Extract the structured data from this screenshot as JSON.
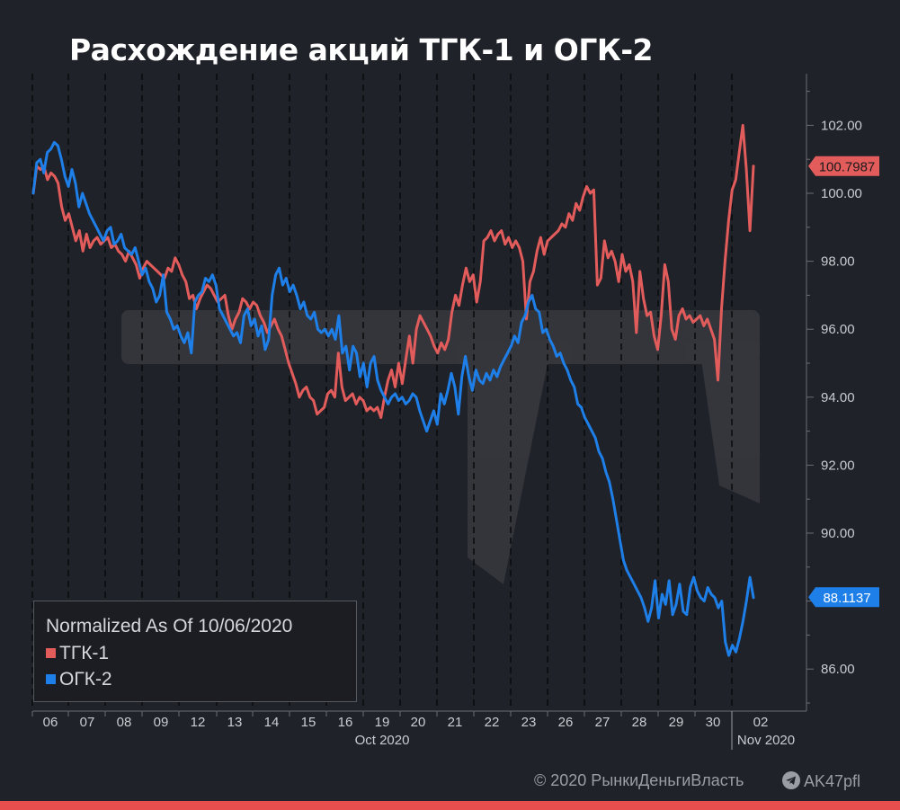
{
  "title": "Расхождение акций ТГК-1 и ОГК-2",
  "footer": {
    "copyright": "© 2020  РынкиДеньгиВласть",
    "channel": "AK47pfl",
    "channel_icon": "telegram-icon"
  },
  "chart_data": {
    "type": "line",
    "legend": {
      "title": "Normalized As Of 10/06/2020",
      "placement": "bottom-left"
    },
    "x_ticks": [
      "06",
      "07",
      "08",
      "09",
      "12",
      "13",
      "14",
      "15",
      "16",
      "19",
      "20",
      "21",
      "22",
      "23",
      "26",
      "27",
      "28",
      "29",
      "30",
      "02"
    ],
    "x_month_labels": [
      "Oct 2020",
      "Nov 2020"
    ],
    "y_ticks": [
      "102.00",
      "100.00",
      "98.00",
      "96.00",
      "94.00",
      "92.00",
      "90.00",
      "88.00",
      "86.00"
    ],
    "ylim": [
      85,
      103.5
    ],
    "grid": "vertical dashed",
    "series": [
      {
        "name": "ТГК-1",
        "color": "#e35c5c",
        "last_value": "100.7987",
        "values": [
          100.0,
          100.8,
          100.7,
          100.8,
          100.4,
          100.6,
          100.5,
          100.3,
          99.6,
          99.2,
          99.4,
          99.0,
          98.6,
          98.9,
          98.3,
          98.8,
          98.4,
          98.6,
          98.7,
          98.5,
          98.6,
          98.7,
          98.4,
          98.5,
          98.3,
          98.2,
          98.0,
          98.3,
          98.1,
          97.9,
          97.5,
          97.8,
          98.0,
          97.9,
          97.8,
          97.7,
          97.6,
          97.5,
          97.8,
          97.7,
          98.1,
          97.9,
          97.6,
          97.4,
          96.9,
          97.0,
          96.6,
          96.9,
          97.1,
          97.3,
          97.2,
          97.0,
          96.8,
          96.9,
          97.0,
          96.4,
          96.0,
          96.3,
          96.5,
          96.9,
          96.8,
          96.6,
          96.8,
          96.7,
          96.4,
          96.2,
          95.9,
          96.1,
          96.3,
          96.0,
          95.8,
          95.4,
          95.0,
          94.7,
          94.4,
          94.0,
          94.2,
          94.3,
          94.0,
          93.9,
          93.5,
          93.6,
          93.7,
          94.1,
          94.2,
          94.0,
          95.3,
          94.3,
          93.9,
          94.0,
          94.1,
          93.8,
          94.0,
          93.9,
          93.6,
          93.7,
          93.6,
          93.7,
          93.4,
          94.0,
          94.5,
          94.8,
          94.3,
          95.0,
          94.4,
          95.1,
          95.8,
          95.0,
          96.0,
          96.4,
          96.2,
          96.0,
          95.8,
          95.5,
          95.3,
          95.6,
          95.4,
          95.7,
          96.5,
          97.0,
          96.7,
          97.3,
          97.8,
          97.4,
          97.6,
          96.8,
          97.4,
          98.6,
          98.7,
          98.9,
          98.6,
          98.8,
          98.9,
          98.5,
          98.7,
          98.4,
          98.6,
          98.4,
          98.0,
          96.3,
          97.4,
          97.7,
          98.3,
          98.7,
          98.2,
          98.6,
          98.7,
          98.8,
          98.9,
          99.1,
          99.0,
          99.4,
          99.2,
          99.7,
          99.5,
          99.9,
          100.2,
          100.0,
          100.1,
          97.3,
          97.5,
          98.6,
          98.1,
          98.3,
          98.0,
          97.4,
          98.2,
          97.7,
          97.9,
          97.4,
          95.9,
          97.7,
          96.9,
          96.4,
          96.5,
          95.8,
          95.4,
          96.4,
          97.9,
          97.4,
          96.0,
          95.7,
          96.4,
          96.6,
          96.3,
          96.4,
          96.2,
          96.3,
          96.4,
          96.1,
          96.3,
          96.0,
          95.7,
          94.5,
          96.6,
          98.0,
          99.2,
          100.1,
          100.4,
          101.2,
          102.0,
          100.7,
          98.9,
          100.8
        ]
      },
      {
        "name": "ОГК-2",
        "color": "#1f7fe8",
        "last_value": "88.1137",
        "values": [
          100.0,
          100.9,
          101.0,
          100.6,
          101.2,
          101.3,
          101.5,
          101.4,
          101.0,
          100.5,
          100.2,
          100.7,
          100.3,
          99.6,
          100.0,
          99.7,
          99.4,
          99.2,
          99.0,
          98.8,
          98.6,
          98.9,
          99.0,
          98.5,
          98.6,
          98.8,
          98.4,
          98.3,
          98.2,
          98.4,
          98.0,
          97.6,
          97.8,
          97.4,
          97.2,
          96.8,
          97.0,
          97.6,
          96.5,
          96.3,
          96.0,
          96.1,
          95.8,
          95.6,
          95.9,
          95.3,
          96.8,
          97.0,
          97.1,
          97.5,
          97.4,
          97.6,
          97.3,
          96.6,
          96.4,
          96.2,
          96.0,
          95.8,
          95.9,
          95.6,
          96.4,
          96.6,
          96.1,
          96.3,
          95.8,
          96.1,
          95.4,
          95.7,
          97.0,
          97.6,
          97.8,
          97.3,
          97.5,
          97.1,
          97.3,
          97.0,
          96.6,
          96.8,
          96.4,
          96.3,
          96.5,
          96.0,
          95.9,
          96.0,
          95.8,
          96.0,
          95.7,
          96.4,
          95.3,
          95.5,
          94.8,
          95.5,
          95.3,
          94.6,
          95.0,
          94.3,
          95.0,
          95.2,
          94.5,
          94.2,
          94.0,
          93.8,
          94.0,
          94.1,
          93.9,
          94.0,
          93.8,
          93.9,
          94.1,
          94.0,
          93.6,
          93.3,
          93.0,
          93.3,
          93.6,
          93.2,
          94.1,
          93.8,
          94.2,
          94.7,
          94.3,
          93.5,
          94.6,
          95.2,
          94.6,
          94.2,
          94.8,
          94.5,
          94.4,
          94.7,
          94.5,
          94.8,
          94.6,
          94.9,
          95.1,
          95.3,
          95.5,
          95.8,
          95.6,
          96.2,
          96.4,
          96.8,
          97.0,
          96.6,
          96.5,
          95.9,
          96.0,
          95.7,
          95.5,
          95.2,
          95.3,
          95.0,
          94.8,
          94.5,
          94.3,
          93.8,
          93.7,
          93.4,
          93.2,
          93.0,
          92.8,
          92.4,
          92.2,
          91.8,
          91.5,
          91.0,
          90.4,
          89.8,
          89.2,
          88.9,
          88.7,
          88.5,
          88.3,
          88.1,
          87.8,
          87.4,
          87.8,
          88.6,
          87.5,
          88.2,
          87.9,
          88.6,
          87.6,
          87.9,
          88.5,
          87.7,
          87.6,
          88.4,
          88.7,
          88.3,
          88.1,
          88.0,
          88.4,
          88.2,
          88.1,
          87.8,
          88.0,
          86.8,
          86.4,
          86.7,
          86.5,
          86.9,
          87.4,
          88.0,
          88.7,
          88.1
        ]
      }
    ]
  }
}
